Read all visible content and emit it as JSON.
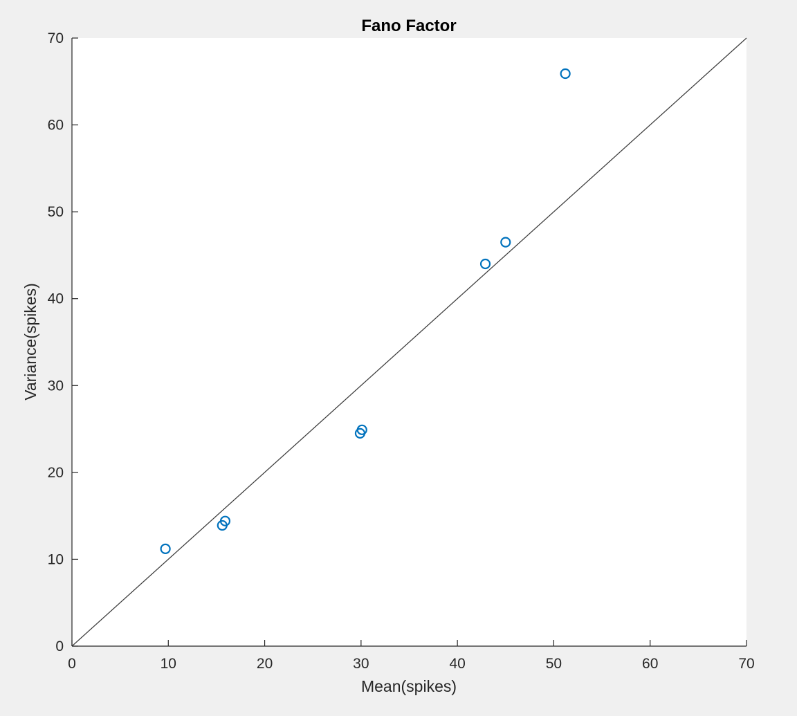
{
  "chart_data": {
    "type": "scatter",
    "title": "Fano Factor",
    "xlabel": "Mean(spikes)",
    "ylabel": "Variance(spikes)",
    "xlim": [
      0,
      70
    ],
    "ylim": [
      0,
      70
    ],
    "xticks": [
      0,
      10,
      20,
      30,
      40,
      50,
      60,
      70
    ],
    "yticks": [
      0,
      10,
      20,
      30,
      40,
      50,
      60,
      70
    ],
    "xtick_labels": [
      "0",
      "10",
      "20",
      "30",
      "40",
      "50",
      "60",
      "70"
    ],
    "ytick_labels": [
      "0",
      "10",
      "20",
      "30",
      "40",
      "50",
      "60",
      "70"
    ],
    "grid": false,
    "legend": "none",
    "marker": "circle-open",
    "series": [
      {
        "x": [
          9.7,
          15.6,
          15.9,
          29.9,
          30.1,
          42.9,
          45.0,
          51.2
        ],
        "y": [
          11.2,
          13.9,
          14.4,
          24.5,
          24.9,
          44.0,
          46.5,
          65.9
        ],
        "color": "#0072BD"
      }
    ],
    "reference_line": {
      "x": [
        0,
        70
      ],
      "y": [
        0,
        70
      ],
      "color": "#404040"
    },
    "background_color": "#f0f0f0",
    "axes_color": "#ffffff"
  }
}
